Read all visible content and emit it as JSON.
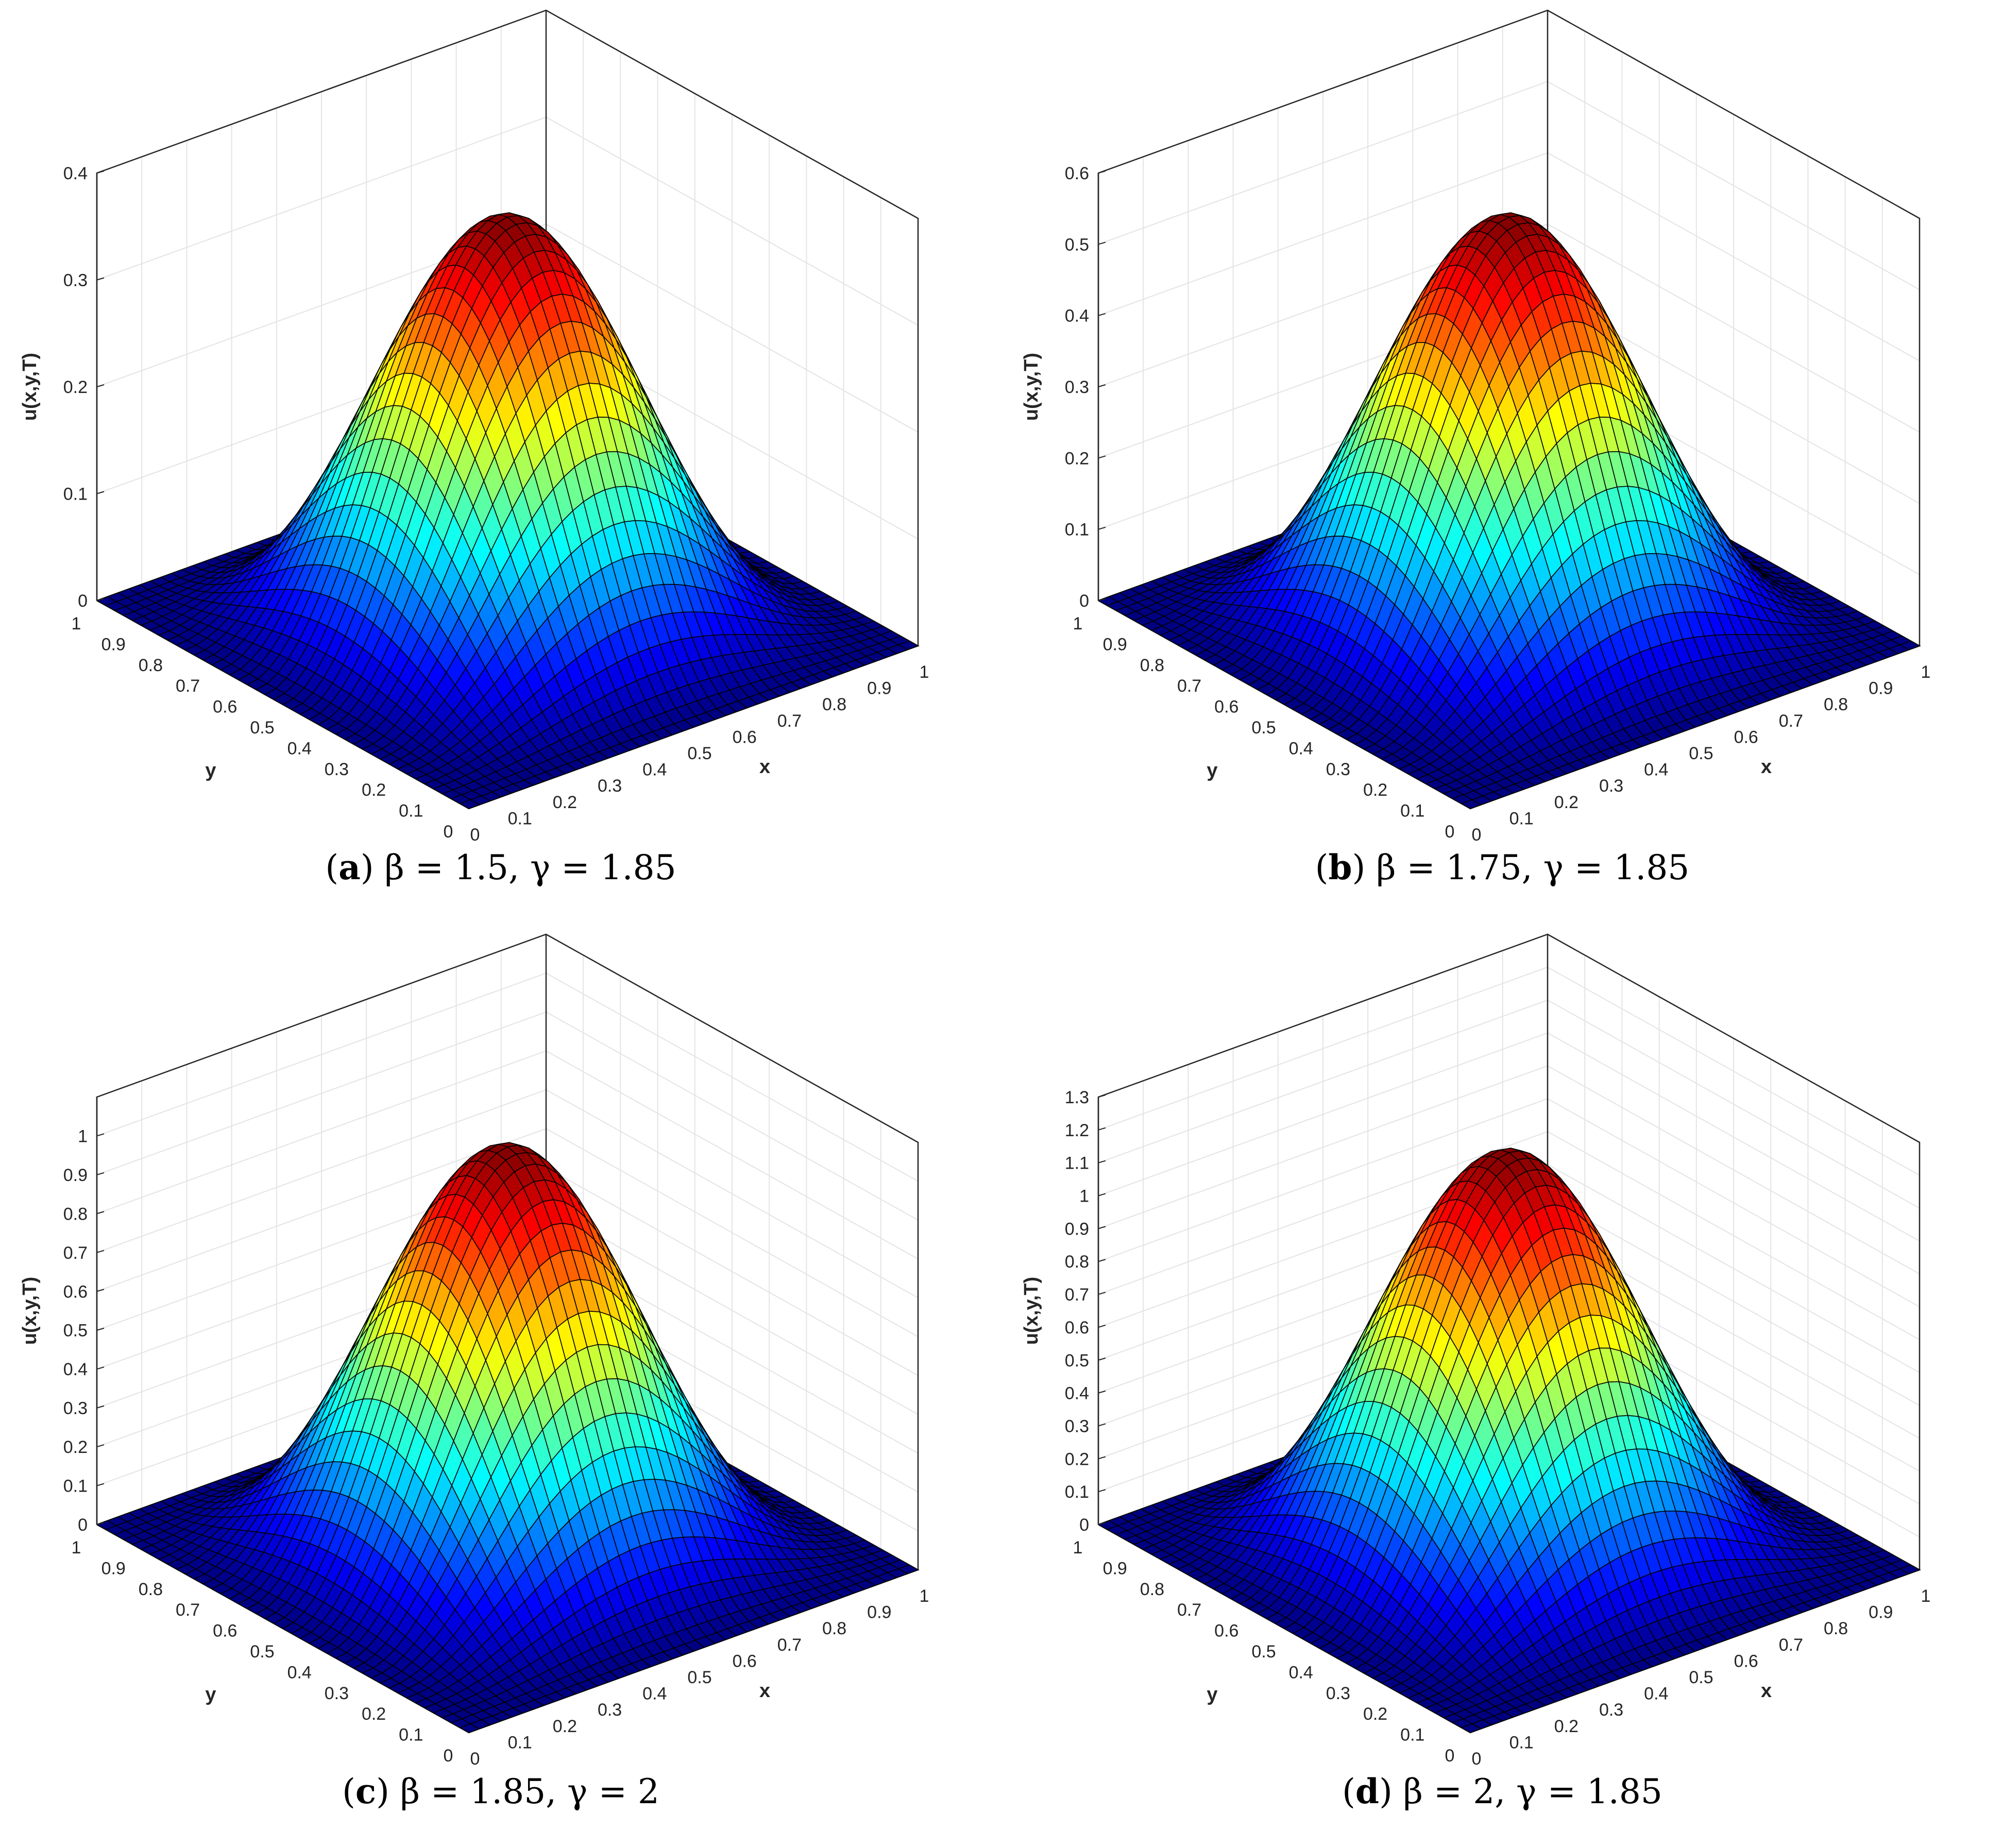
{
  "chart_data": [
    {
      "type": "surface",
      "caption_label": "a",
      "caption_formula": "β = 1.5, γ = 1.85",
      "xlabel": "x",
      "ylabel": "y",
      "zlabel": "u(x,y,T)",
      "xlim": [
        0,
        1
      ],
      "ylim": [
        0,
        1
      ],
      "zlim": [
        0,
        0.4
      ],
      "x_ticks": [
        "0",
        "0.1",
        "0.2",
        "0.3",
        "0.4",
        "0.5",
        "0.6",
        "0.7",
        "0.8",
        "0.9",
        "1"
      ],
      "y_ticks": [
        "0",
        "0.1",
        "0.2",
        "0.3",
        "0.4",
        "0.5",
        "0.6",
        "0.7",
        "0.8",
        "0.9",
        "1"
      ],
      "z_ticks": [
        "0",
        "0.1",
        "0.2",
        "0.3",
        "0.4"
      ],
      "peak": {
        "x": 0.5,
        "y": 0.5,
        "z": 0.38
      },
      "grid": true,
      "colormap": "jet"
    },
    {
      "type": "surface",
      "caption_label": "b",
      "caption_formula": "β = 1.75, γ = 1.85",
      "xlabel": "x",
      "ylabel": "y",
      "zlabel": "u(x,y,T)",
      "xlim": [
        0,
        1
      ],
      "ylim": [
        0,
        1
      ],
      "zlim": [
        0,
        0.6
      ],
      "x_ticks": [
        "0",
        "0.1",
        "0.2",
        "0.3",
        "0.4",
        "0.5",
        "0.6",
        "0.7",
        "0.8",
        "0.9",
        "1"
      ],
      "y_ticks": [
        "0",
        "0.1",
        "0.2",
        "0.3",
        "0.4",
        "0.5",
        "0.6",
        "0.7",
        "0.8",
        "0.9",
        "1"
      ],
      "z_ticks": [
        "0",
        "0.1",
        "0.2",
        "0.3",
        "0.4",
        "0.5",
        "0.6"
      ],
      "peak": {
        "x": 0.5,
        "y": 0.5,
        "z": 0.57
      },
      "grid": true,
      "colormap": "jet"
    },
    {
      "type": "surface",
      "caption_label": "c",
      "caption_formula": "β = 1.85,  γ = 2",
      "xlabel": "x",
      "ylabel": "y",
      "zlabel": "u(x,y,T)",
      "xlim": [
        0,
        1
      ],
      "ylim": [
        0,
        1
      ],
      "zlim": [
        0,
        1.1
      ],
      "x_ticks": [
        "0",
        "0.1",
        "0.2",
        "0.3",
        "0.4",
        "0.5",
        "0.6",
        "0.7",
        "0.8",
        "0.9",
        "1"
      ],
      "y_ticks": [
        "0",
        "0.1",
        "0.2",
        "0.3",
        "0.4",
        "0.5",
        "0.6",
        "0.7",
        "0.8",
        "0.9",
        "1"
      ],
      "z_ticks": [
        "0",
        "0.1",
        "0.2",
        "0.3",
        "0.4",
        "0.5",
        "0.6",
        "0.7",
        "0.8",
        "0.9",
        "1"
      ],
      "peak": {
        "x": 0.5,
        "y": 0.5,
        "z": 1.03
      },
      "grid": true,
      "colormap": "jet"
    },
    {
      "type": "surface",
      "caption_label": "d",
      "caption_formula": "β = 2, γ = 1.85",
      "xlabel": "x",
      "ylabel": "y",
      "zlabel": "u(x,y,T)",
      "xlim": [
        0,
        1
      ],
      "ylim": [
        0,
        1
      ],
      "zlim": [
        0,
        1.3
      ],
      "x_ticks": [
        "0",
        "0.1",
        "0.2",
        "0.3",
        "0.4",
        "0.5",
        "0.6",
        "0.7",
        "0.8",
        "0.9",
        "1"
      ],
      "y_ticks": [
        "0",
        "0.1",
        "0.2",
        "0.3",
        "0.4",
        "0.5",
        "0.6",
        "0.7",
        "0.8",
        "0.9",
        "1"
      ],
      "z_ticks": [
        "0",
        "0.1",
        "0.2",
        "0.3",
        "0.4",
        "0.5",
        "0.6",
        "0.7",
        "0.8",
        "0.9",
        "1",
        "1.1",
        "1.2",
        "1.3"
      ],
      "peak": {
        "x": 0.5,
        "y": 0.5,
        "z": 1.2
      },
      "grid": true,
      "colormap": "jet"
    }
  ]
}
